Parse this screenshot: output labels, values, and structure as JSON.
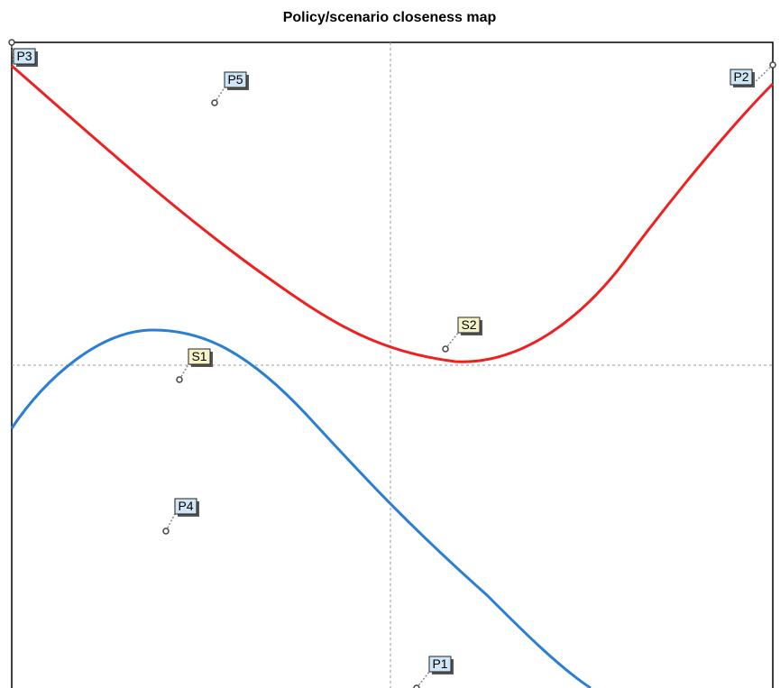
{
  "header": {
    "title": "Policy/scenario closeness map"
  },
  "nodes": [
    {
      "label": "P3",
      "kind": "policy"
    },
    {
      "label": "P5",
      "kind": "policy"
    },
    {
      "label": "P2",
      "kind": "policy"
    },
    {
      "label": "S2",
      "kind": "scenario"
    },
    {
      "label": "S1",
      "kind": "scenario"
    },
    {
      "label": "P4",
      "kind": "policy"
    },
    {
      "label": "P1",
      "kind": "policy"
    }
  ]
}
